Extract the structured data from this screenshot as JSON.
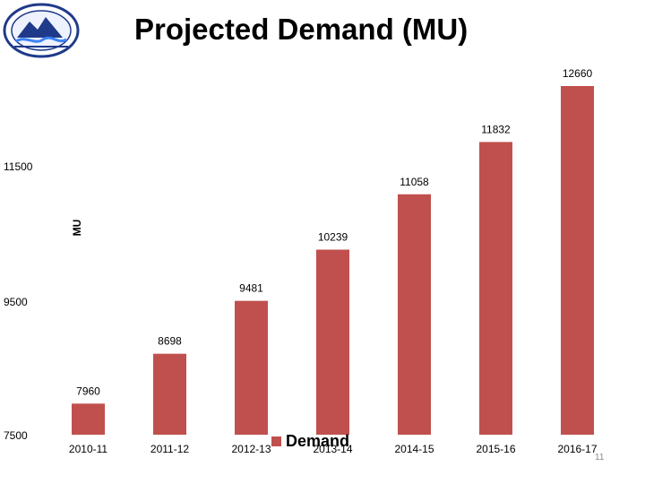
{
  "slide": {
    "title": "Projected Demand (MU)",
    "number": "11"
  },
  "chart_data": {
    "type": "bar",
    "title": "Projected Demand (MU)",
    "xlabel": "",
    "ylabel": "MU",
    "categories": [
      "2010-11",
      "2011-12",
      "2012-13",
      "2013-14",
      "2014-15",
      "2015-16",
      "2016-17"
    ],
    "series": [
      {
        "name": "Demand",
        "values": [
          7960,
          8698,
          9481,
          10239,
          11058,
          11832,
          12660
        ],
        "color": "#c0504d"
      }
    ],
    "value_labels": [
      "7960",
      "8698",
      "9481",
      "10239",
      "11058",
      "11832",
      "12660"
    ],
    "yticks": [
      7500,
      9500,
      11500
    ],
    "ytick_labels": [
      "7500",
      "9500",
      "11500"
    ],
    "ylim": [
      7500,
      12900
    ],
    "grid": false,
    "legend_position": "bottom"
  }
}
